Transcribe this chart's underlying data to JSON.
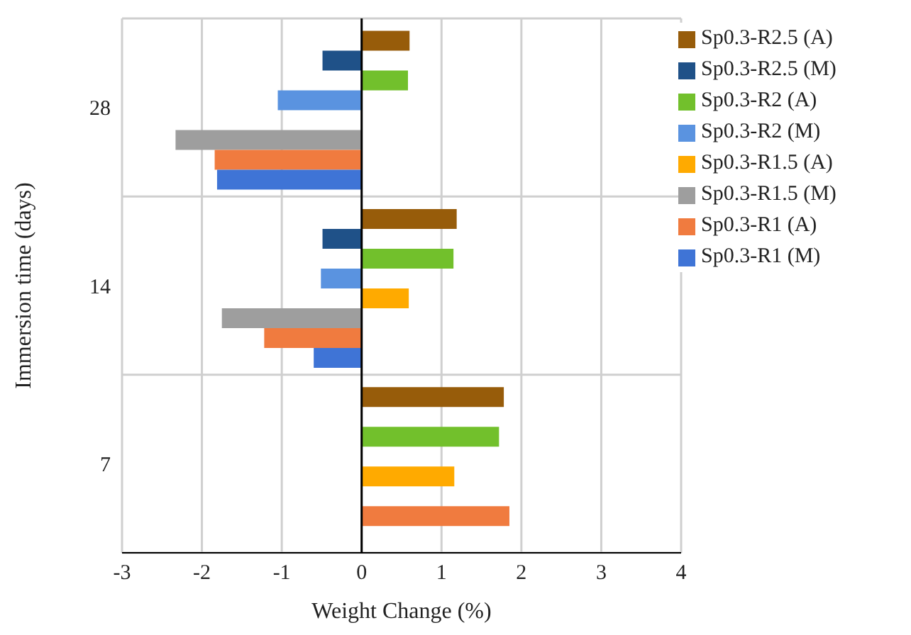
{
  "chart_data": {
    "type": "bar",
    "orientation": "horizontal",
    "xlabel": "Weight Change (%)",
    "ylabel": "Immersion time (days)",
    "categories": [
      "28",
      "14",
      "7"
    ],
    "series": [
      {
        "name": "Sp0.3-R1 (M)",
        "color": "#3f74d6",
        "values": [
          -1.81,
          -0.6,
          null
        ]
      },
      {
        "name": "Sp0.3-R1 (A)",
        "color": "#f07b3f",
        "values": [
          -1.84,
          -1.22,
          1.85
        ]
      },
      {
        "name": "Sp0.3-R1.5 (M)",
        "color": "#9e9e9e",
        "values": [
          -2.33,
          -1.75,
          null
        ]
      },
      {
        "name": "Sp0.3-R1.5 (A)",
        "color": "#ffaa00",
        "values": [
          null,
          0.59,
          1.16
        ]
      },
      {
        "name": "Sp0.3-R2 (M)",
        "color": "#5a93e0",
        "values": [
          -1.05,
          -0.51,
          null
        ]
      },
      {
        "name": "Sp0.3-R2 (A)",
        "color": "#72c02c",
        "values": [
          0.58,
          1.15,
          1.72
        ]
      },
      {
        "name": "Sp0.3-R2.5 (M)",
        "color": "#1f5188",
        "values": [
          -0.49,
          -0.49,
          null
        ]
      },
      {
        "name": "Sp0.3-R2.5 (A)",
        "color": "#975c0a",
        "values": [
          0.6,
          1.19,
          1.78
        ]
      }
    ],
    "xlim": [
      -3,
      4
    ],
    "xticks": [
      -3,
      -2,
      -1,
      0,
      1,
      2,
      3,
      4
    ],
    "grid": true,
    "legend": "top right"
  }
}
